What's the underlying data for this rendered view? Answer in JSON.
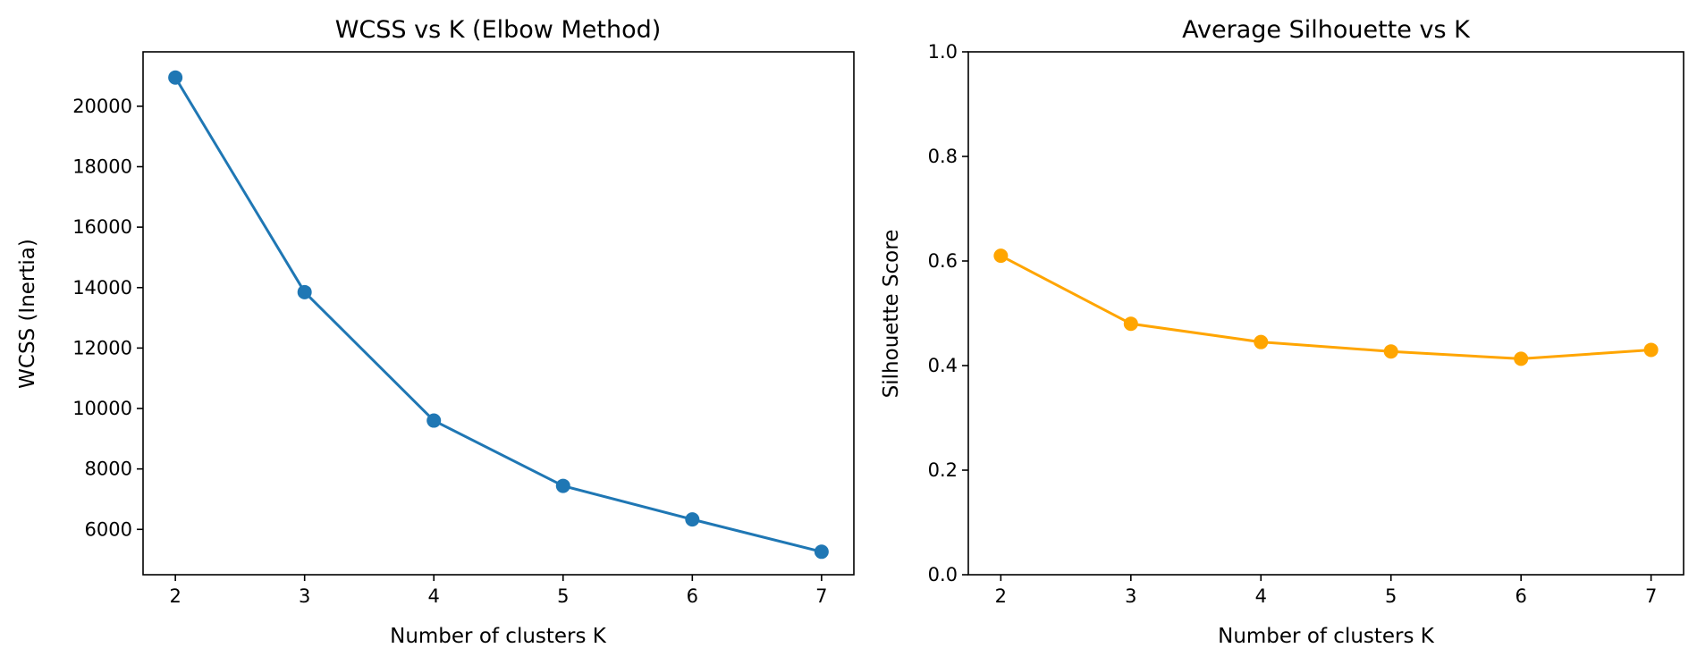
{
  "chart_data": [
    {
      "type": "line",
      "title": "WCSS vs K (Elbow Method)",
      "xlabel": "Number of clusters K",
      "ylabel": "WCSS (Inertia)",
      "x": [
        2,
        3,
        4,
        5,
        6,
        7
      ],
      "xticks": [
        2,
        3,
        4,
        5,
        6,
        7
      ],
      "yticks": [
        6000,
        8000,
        10000,
        12000,
        14000,
        16000,
        18000,
        20000
      ],
      "xlim": [
        1.75,
        7.25
      ],
      "ylim": [
        4500,
        21800
      ],
      "grid": false,
      "series": [
        {
          "values": [
            20950,
            13850,
            9600,
            7440,
            6330,
            5260
          ],
          "color": "#1f77b4",
          "marker": "circle"
        }
      ]
    },
    {
      "type": "line",
      "title": "Average Silhouette vs K",
      "xlabel": "Number of clusters K",
      "ylabel": "Silhouette Score",
      "x": [
        2,
        3,
        4,
        5,
        6,
        7
      ],
      "xticks": [
        2,
        3,
        4,
        5,
        6,
        7
      ],
      "yticks": [
        0.0,
        0.2,
        0.4,
        0.6,
        0.8,
        1.0
      ],
      "ytick_labels": [
        "0.0",
        "0.2",
        "0.4",
        "0.6",
        "0.8",
        "1.0"
      ],
      "xlim": [
        1.75,
        7.25
      ],
      "ylim": [
        0,
        1
      ],
      "grid": false,
      "series": [
        {
          "values": [
            0.61,
            0.48,
            0.445,
            0.427,
            0.413,
            0.43
          ],
          "color": "#ffa500",
          "marker": "circle"
        }
      ]
    }
  ]
}
